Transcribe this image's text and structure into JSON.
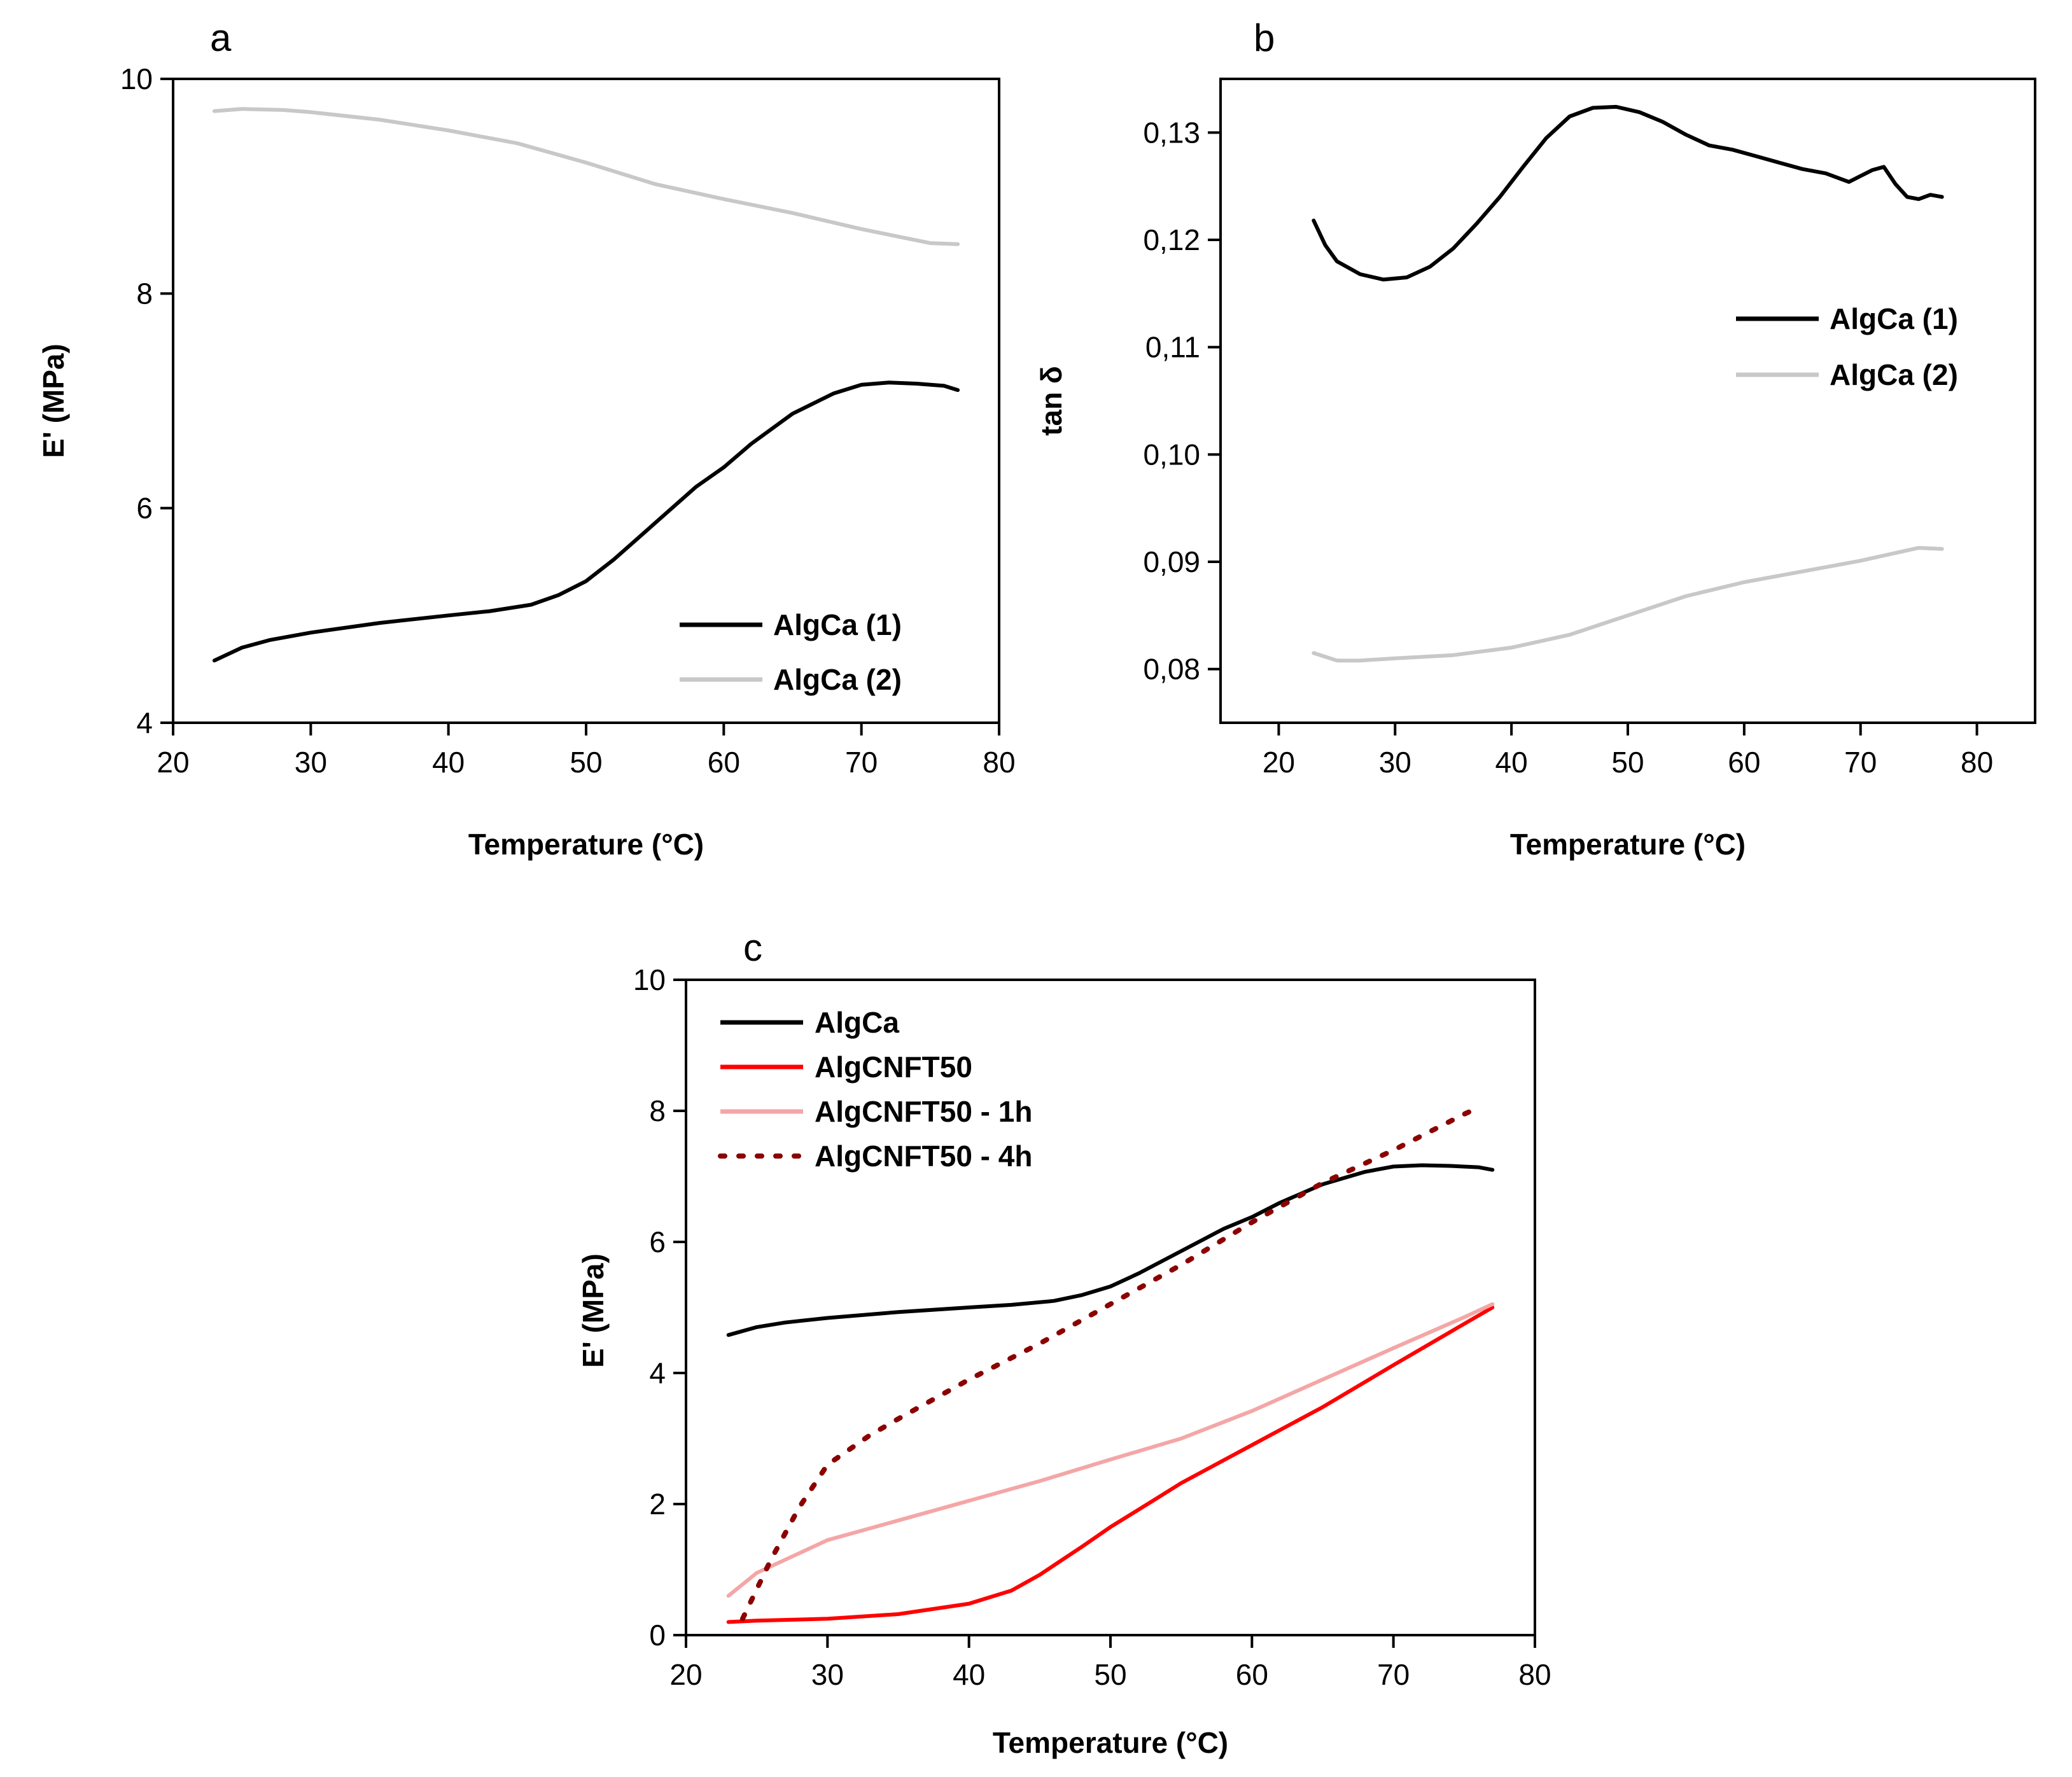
{
  "chart_data": [
    {
      "panel_label": "a",
      "type": "line",
      "xlabel": "Temperature (°C)",
      "ylabel": "E' (MPa)",
      "xlim": [
        20,
        80
      ],
      "ylim": [
        4,
        10
      ],
      "xticks": [
        20,
        30,
        40,
        50,
        60,
        70,
        80
      ],
      "yticks": [
        4,
        6,
        8,
        10
      ],
      "xtick_labels": [
        "20",
        "30",
        "40",
        "50",
        "60",
        "70",
        "80"
      ],
      "ytick_labels": [
        "4",
        "6",
        "8",
        "10"
      ],
      "legend_position": "bottom-right",
      "series": [
        {
          "name": "AlgCa (1)",
          "color": "#000000",
          "dash": "solid",
          "x": [
            23,
            25,
            27,
            30,
            35,
            40,
            43,
            46,
            48,
            50,
            52,
            55,
            58,
            60,
            62,
            65,
            68,
            70,
            72,
            74,
            76,
            77
          ],
          "y": [
            4.58,
            4.7,
            4.77,
            4.84,
            4.93,
            5.0,
            5.04,
            5.1,
            5.19,
            5.32,
            5.52,
            5.86,
            6.2,
            6.38,
            6.6,
            6.88,
            7.07,
            7.15,
            7.17,
            7.16,
            7.14,
            7.1
          ]
        },
        {
          "name": "AlgCa (2)",
          "color": "#c8c8c8",
          "dash": "solid",
          "x": [
            23,
            25,
            28,
            30,
            35,
            40,
            45,
            50,
            55,
            60,
            65,
            70,
            75,
            77
          ],
          "y": [
            9.7,
            9.72,
            9.71,
            9.69,
            9.62,
            9.52,
            9.4,
            9.22,
            9.02,
            8.88,
            8.75,
            8.6,
            8.47,
            8.46
          ]
        }
      ]
    },
    {
      "panel_label": "b",
      "type": "line",
      "xlabel": "Temperature (°C)",
      "ylabel": "tan δ",
      "xlim": [
        15,
        85
      ],
      "ylim": [
        0.075,
        0.135
      ],
      "xticks": [
        20,
        30,
        40,
        50,
        60,
        70,
        80
      ],
      "yticks": [
        0.08,
        0.09,
        0.1,
        0.11,
        0.12,
        0.13
      ],
      "xtick_labels": [
        "20",
        "30",
        "40",
        "50",
        "60",
        "70",
        "80"
      ],
      "ytick_labels": [
        "0,08",
        "0,09",
        "0,10",
        "0,11",
        "0,12",
        "0,13"
      ],
      "legend_position": "middle-right",
      "series": [
        {
          "name": "AlgCa (1)",
          "color": "#000000",
          "dash": "solid",
          "x": [
            23,
            24,
            25,
            27,
            29,
            31,
            33,
            35,
            37,
            39,
            41,
            43,
            45,
            47,
            49,
            51,
            53,
            55,
            57,
            59,
            61,
            63,
            65,
            67,
            69,
            71,
            72,
            73,
            74,
            75,
            76,
            77
          ],
          "y": [
            0.1218,
            0.1195,
            0.118,
            0.1168,
            0.1163,
            0.1165,
            0.1175,
            0.1192,
            0.1215,
            0.124,
            0.1268,
            0.1295,
            0.1315,
            0.1323,
            0.1324,
            0.1319,
            0.131,
            0.1298,
            0.1288,
            0.1284,
            0.1278,
            0.1272,
            0.1266,
            0.1262,
            0.1254,
            0.1265,
            0.1268,
            0.1252,
            0.124,
            0.1238,
            0.1242,
            0.124
          ]
        },
        {
          "name": "AlgCa (2)",
          "color": "#c8c8c8",
          "dash": "solid",
          "x": [
            23,
            25,
            27,
            30,
            35,
            40,
            45,
            50,
            55,
            60,
            65,
            70,
            75,
            77
          ],
          "y": [
            0.0815,
            0.0808,
            0.0808,
            0.081,
            0.0813,
            0.082,
            0.0832,
            0.085,
            0.0868,
            0.0881,
            0.0891,
            0.0901,
            0.0913,
            0.0912
          ]
        }
      ]
    },
    {
      "panel_label": "c",
      "type": "line",
      "xlabel": "Temperature (°C)",
      "ylabel": "E' (MPa)",
      "xlim": [
        20,
        80
      ],
      "ylim": [
        0,
        10
      ],
      "xticks": [
        20,
        30,
        40,
        50,
        60,
        70,
        80
      ],
      "yticks": [
        0,
        2,
        4,
        6,
        8,
        10
      ],
      "xtick_labels": [
        "20",
        "30",
        "40",
        "50",
        "60",
        "70",
        "80"
      ],
      "ytick_labels": [
        "0",
        "2",
        "4",
        "6",
        "8",
        "10"
      ],
      "legend_position": "top-left",
      "series": [
        {
          "name": "AlgCa",
          "color": "#000000",
          "dash": "solid",
          "x": [
            23,
            25,
            27,
            30,
            35,
            40,
            43,
            46,
            48,
            50,
            52,
            55,
            58,
            60,
            62,
            65,
            68,
            70,
            72,
            74,
            76,
            77
          ],
          "y": [
            4.58,
            4.7,
            4.77,
            4.84,
            4.93,
            5.0,
            5.04,
            5.1,
            5.19,
            5.32,
            5.52,
            5.86,
            6.2,
            6.38,
            6.6,
            6.88,
            7.07,
            7.15,
            7.17,
            7.16,
            7.14,
            7.1
          ]
        },
        {
          "name": "AlgCNFT50",
          "color": "#ff0000",
          "dash": "solid",
          "x": [
            23,
            25,
            30,
            35,
            40,
            43,
            45,
            48,
            50,
            53,
            55,
            60,
            65,
            70,
            75,
            77
          ],
          "y": [
            0.2,
            0.22,
            0.25,
            0.32,
            0.48,
            0.68,
            0.92,
            1.35,
            1.65,
            2.05,
            2.32,
            2.9,
            3.48,
            4.12,
            4.75,
            5.0
          ]
        },
        {
          "name": "AlgCNFT50 - 1h",
          "color": "#f4a6a6",
          "dash": "solid",
          "x": [
            23,
            25,
            28,
            30,
            35,
            40,
            45,
            50,
            55,
            60,
            65,
            70,
            75,
            77
          ],
          "y": [
            0.6,
            0.95,
            1.25,
            1.45,
            1.75,
            2.05,
            2.35,
            2.68,
            3.0,
            3.42,
            3.9,
            4.38,
            4.85,
            5.05
          ]
        },
        {
          "name": "AlgCNFT50 - 4h",
          "color": "#8b0000",
          "dash": "dotted",
          "x": [
            24,
            26,
            28,
            30,
            33,
            35,
            40,
            45,
            50,
            55,
            60,
            65,
            70,
            75,
            76
          ],
          "y": [
            0.25,
            1.15,
            1.95,
            2.6,
            3.05,
            3.3,
            3.9,
            4.45,
            5.05,
            5.65,
            6.3,
            6.9,
            7.4,
            7.95,
            8.05
          ]
        }
      ]
    }
  ]
}
